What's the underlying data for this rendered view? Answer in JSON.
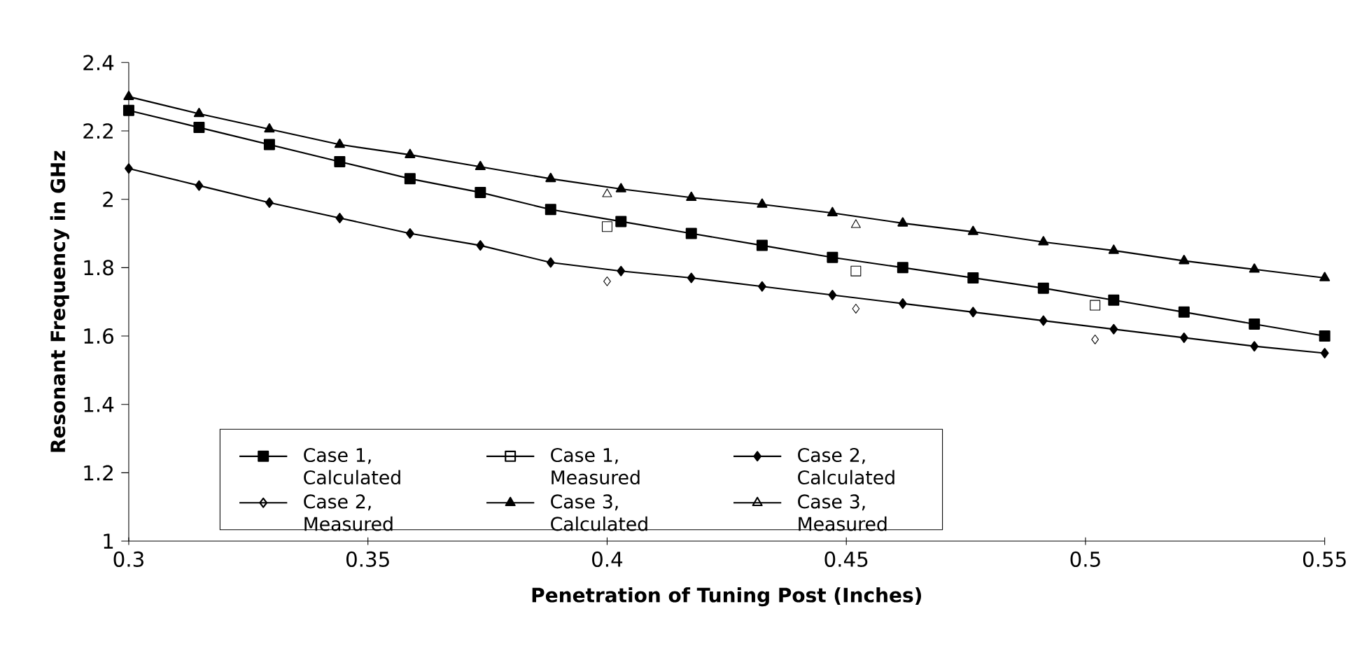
{
  "chart_data": {
    "type": "line",
    "xlabel": "Penetration of Tuning Post (Inches)",
    "ylabel": "Resonant Frequency in GHz",
    "xlim": [
      0.3,
      0.55
    ],
    "xticks": [
      0.3,
      0.35,
      0.4,
      0.45,
      0.5,
      0.55
    ],
    "ylim": [
      1,
      2.4
    ],
    "yticks": [
      1,
      1.2,
      1.4,
      1.6,
      1.8,
      2,
      2.2,
      2.4
    ],
    "grid": false,
    "legend": "bottom left",
    "line_style": "solid",
    "series": [
      {
        "name": "Case 1, Calculated",
        "marker": "square",
        "color": "#000000",
        "x": [
          0.3,
          0.3147,
          0.3294,
          0.3441,
          0.3588,
          0.3735,
          0.3882,
          0.4029,
          0.4176,
          0.4324,
          0.4471,
          0.4618,
          0.4765,
          0.4912,
          0.5059,
          0.5206,
          0.5353,
          0.55
        ],
        "values": [
          2.26,
          2.21,
          2.16,
          2.11,
          2.06,
          2.02,
          1.97,
          1.935,
          1.9,
          1.865,
          1.83,
          1.8,
          1.77,
          1.74,
          1.705,
          1.67,
          1.635,
          1.6
        ]
      },
      {
        "name": "Case 1, Measured",
        "type": "scatter",
        "marker": "square",
        "color": "#000000",
        "x": [
          0.4,
          0.452,
          0.502
        ],
        "values": [
          1.92,
          1.79,
          1.69
        ]
      },
      {
        "name": "Case 2, Calculated",
        "marker": "diamond",
        "color": "#000000",
        "x": [
          0.3,
          0.3147,
          0.3294,
          0.3441,
          0.3588,
          0.3735,
          0.3882,
          0.4029,
          0.4176,
          0.4324,
          0.4471,
          0.4618,
          0.4765,
          0.4912,
          0.5059,
          0.5206,
          0.5353,
          0.55
        ],
        "values": [
          2.09,
          2.04,
          1.99,
          1.945,
          1.9,
          1.865,
          1.815,
          1.79,
          1.77,
          1.745,
          1.72,
          1.695,
          1.67,
          1.645,
          1.62,
          1.595,
          1.57,
          1.55
        ]
      },
      {
        "name": "Case 2, Measured",
        "type": "scatter",
        "marker": "diamond",
        "color": "#000000",
        "x": [
          0.4,
          0.452,
          0.502
        ],
        "values": [
          1.76,
          1.68,
          1.59
        ]
      },
      {
        "name": "Case 3, Calculated",
        "marker": "triangle",
        "color": "#000000",
        "x": [
          0.3,
          0.3147,
          0.3294,
          0.3441,
          0.3588,
          0.3735,
          0.3882,
          0.4029,
          0.4176,
          0.4324,
          0.4471,
          0.4618,
          0.4765,
          0.4912,
          0.5059,
          0.5206,
          0.5353,
          0.55
        ],
        "values": [
          2.3,
          2.25,
          2.205,
          2.16,
          2.13,
          2.095,
          2.06,
          2.03,
          2.005,
          1.985,
          1.96,
          1.93,
          1.905,
          1.875,
          1.85,
          1.82,
          1.795,
          1.77
        ]
      },
      {
        "name": "Case 3, Measured",
        "type": "scatter",
        "marker": "triangle",
        "color": "#000000",
        "x": [
          0.4,
          0.452
        ],
        "values": [
          2.015,
          1.925
        ]
      }
    ]
  }
}
